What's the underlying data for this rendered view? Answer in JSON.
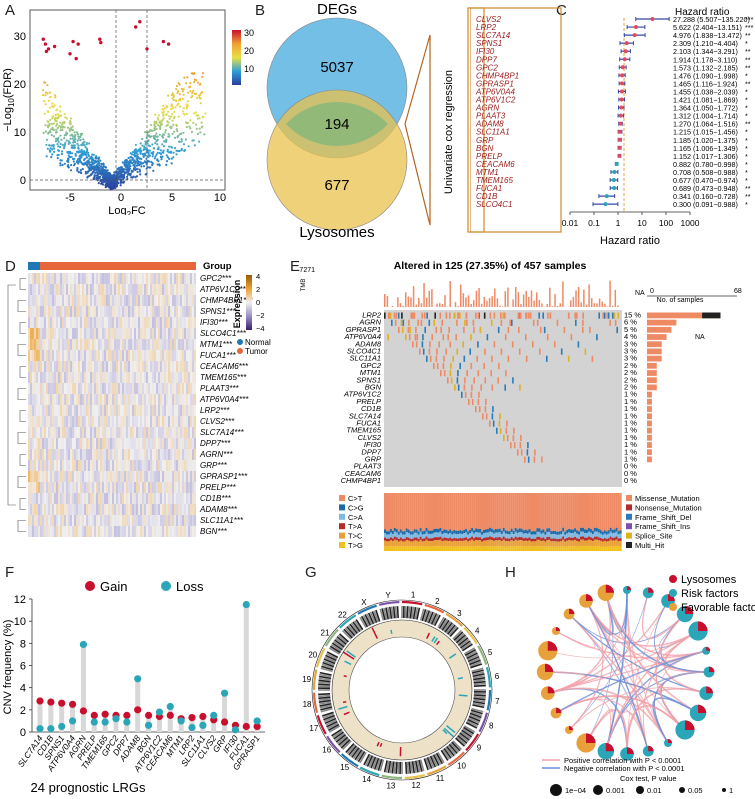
{
  "panels": {
    "A": {
      "label": "A",
      "xlabel_main": "Log",
      "xlabel_sub": "2",
      "xlabel_tail": "FC",
      "ylabel_main": "−Log",
      "ylabel_sub": "10",
      "ylabel_tail": "(FDR)",
      "x_ticks": [
        "-5",
        "0",
        "5",
        "10"
      ],
      "y_ticks": [
        "0",
        "10",
        "20",
        "30"
      ],
      "colorbar_ticks": [
        "30",
        "20",
        "10"
      ]
    },
    "B": {
      "label": "B",
      "top_label": "DEGs",
      "bottom_label": "Lysosomes",
      "n_degs_only": "5037",
      "n_overlap": "194",
      "n_lyso_only": "677",
      "arrow_text": "Univariate cox regression"
    },
    "C": {
      "label": "C",
      "header": "Hazard ratio",
      "xlabel": "Hazard ratio",
      "x_ticks": [
        "0.01",
        "0.1",
        "1",
        "10",
        "100",
        "1000"
      ]
    },
    "D": {
      "label": "D",
      "group_title": "Group",
      "legend_title": "Expression",
      "legend_ticks": [
        "4",
        "2",
        "0",
        "−2",
        "−4"
      ],
      "legend_groups": [
        "Normal",
        "Tumor"
      ],
      "genes": [
        "GPC2***",
        "ATP6V1C2***",
        "CHMP4BP1***",
        "SPNS1***",
        "IFI30***",
        "SLCO4C1***",
        "MTM1***",
        "FUCA1***",
        "CEACAM6***",
        "TMEM165***",
        "PLAAT3***",
        "ATP6V0A4***",
        "LRP2***",
        "CLVS2***",
        "SLC7A14***",
        "DPP7***",
        "AGRN***",
        "GRP***",
        "GPRASP1***",
        "PRELP***",
        "CD1B***",
        "ADAM8***",
        "SLC11A1***",
        "BGN***"
      ]
    },
    "E": {
      "label": "E",
      "title": "Altered in 125 (27.35%) of 457 samples",
      "tmb_label": "TMB",
      "tmb_max": "7271",
      "na_label": "NA",
      "samples_label": "No. of samples",
      "samples_ticks": [
        "0",
        "68"
      ],
      "genes": [
        "LRP2",
        "AGRN",
        "GPRASP1",
        "ATP6V0A4",
        "ADAM8",
        "SLCO4C1",
        "SLC11A1",
        "GPC2",
        "MTM1",
        "SPNS1",
        "BGN",
        "ATP6V1C2",
        "PRELP",
        "CD1B",
        "SLC7A14",
        "FUCA1",
        "TMEM165",
        "CLVS2",
        "IFI30",
        "DPP7",
        "GRP",
        "PLAAT3",
        "CEACAM6",
        "CHMP4BP1"
      ],
      "pcts": [
        "15 %",
        "6 %",
        "5 %",
        "4 %",
        "3 %",
        "3 %",
        "3 %",
        "2 %",
        "2 %",
        "2 %",
        "2 %",
        "1 %",
        "1 %",
        "1 %",
        "1 %",
        "1 %",
        "1 %",
        "1 %",
        "1 %",
        "1 %",
        "1 %",
        "0 %",
        "0 %",
        "0 %"
      ],
      "titv_labels": [
        "C>T",
        "C>G",
        "C>A",
        "T>A",
        "T>C",
        "T>G"
      ],
      "variant_labels": [
        "Missense_Mutation",
        "Nonsense_Mutation",
        "Frame_Shift_Del",
        "Frame_Shift_Ins",
        "Splice_Site",
        "Multi_Hit"
      ]
    },
    "F": {
      "label": "F",
      "legend_gain": "Gain",
      "legend_loss": "Loss",
      "ylabel": "CNV frequency (%)",
      "y_ticks": [
        "0",
        "2",
        "4",
        "6",
        "8",
        "10",
        "12"
      ],
      "footer": "24 prognostic LRGs"
    },
    "G": {
      "label": "G",
      "chromosomes": [
        "1",
        "2",
        "3",
        "4",
        "5",
        "6",
        "7",
        "8",
        "9",
        "10",
        "11",
        "12",
        "13",
        "14",
        "15",
        "16",
        "17",
        "18",
        "19",
        "20",
        "21",
        "22",
        "X",
        "Y"
      ]
    },
    "H": {
      "label": "H",
      "legend": [
        "Lysosomes",
        "Risk factors",
        "Favorable factors"
      ],
      "pos_corr": "Positive correlation with P < 0.0001",
      "neg_corr": "Negative correlation with P < 0.0001",
      "pvalue_title": "Cox test, P value",
      "pvalue_labels": [
        "1e−04",
        "0.001",
        "0.01",
        "0.05",
        "1"
      ]
    }
  },
  "colors": {
    "red": "#c8102e",
    "teal": "#2aa6b8",
    "orange": "#e8a13a",
    "pink": "#f2a0a8",
    "blue_line": "#6a8fd8",
    "venn_blue": "#5ab4e0",
    "venn_yellow": "#e9c24c"
  },
  "chart_data": [
    {
      "type": "scatter",
      "panel": "A",
      "xlabel": "Log2FC",
      "ylabel": "-Log10(FDR)",
      "xlim": [
        -8,
        11
      ],
      "ylim": [
        0,
        37
      ],
      "thresholds": {
        "x": [
          -1,
          1
        ],
        "y": 1.3
      },
      "highlight_points": [
        [
          -6.7,
          31
        ],
        [
          -6.5,
          30
        ],
        [
          -6.4,
          28.5
        ],
        [
          -6.2,
          29
        ],
        [
          -5.6,
          29.5
        ],
        [
          -4.1,
          28
        ],
        [
          -3.8,
          30.5
        ],
        [
          -3.3,
          30
        ],
        [
          -3.5,
          27
        ],
        [
          -1.2,
          31
        ],
        [
          -1.1,
          30.3
        ],
        [
          2.3,
          33.5
        ],
        [
          2.7,
          34.6
        ],
        [
          3.4,
          29
        ],
        [
          5.0,
          30.5
        ],
        [
          5.5,
          30
        ]
      ]
    },
    {
      "type": "table",
      "panel": "C",
      "title": "Hazard ratio",
      "genes": [
        "CLVS2",
        "LRP2",
        "SLC7A14",
        "SPNS1",
        "IFI30",
        "DPP7",
        "GPC2",
        "CHMP4BP1",
        "GPRASP1",
        "ATP6V0A4",
        "ATP6V1C2",
        "AGRN",
        "PLAAT3",
        "ADAM8",
        "SLC11A1",
        "GRP",
        "BGN",
        "PRELP",
        "CEACAM6",
        "MTM1",
        "TMEM165",
        "FUCA1",
        "CD1B",
        "SLCO4C1"
      ],
      "hr": [
        27.288,
        5.622,
        4.976,
        2.309,
        2.103,
        1.914,
        1.573,
        1.476,
        1.465,
        1.455,
        1.421,
        1.364,
        1.312,
        1.27,
        1.215,
        1.185,
        1.165,
        1.152,
        0.882,
        0.708,
        0.677,
        0.689,
        0.341,
        0.3
      ],
      "lower": [
        5.507,
        2.404,
        1.838,
        1.21,
        1.344,
        1.178,
        1.132,
        1.09,
        1.116,
        1.038,
        1.081,
        1.05,
        1.004,
        1.064,
        1.015,
        1.02,
        1.006,
        1.017,
        0.78,
        0.508,
        0.47,
        0.473,
        0.16,
        0.091
      ],
      "upper": [
        135.22,
        13.151,
        13.472,
        4.404,
        3.291,
        3.11,
        2.185,
        1.998,
        1.924,
        2.039,
        1.869,
        1.772,
        1.714,
        1.516,
        1.456,
        1.375,
        1.349,
        1.306,
        0.998,
        0.988,
        0.974,
        0.948,
        0.728,
        0.988
      ],
      "ci_text": [
        "27.288 (5.507−135.220)",
        "5.622 (2.404−13.151)",
        "4.976 (1.838−13.472)",
        "2.309 (1.210−4.404)",
        "2.103 (1.344−3.291)",
        "1.914 (1.178−3.110)",
        "1.573 (1.132−2.185)",
        "1.476 (1.090−1.998)",
        "1.465 (1.116−1.924)",
        "1.455 (1.038−2.039)",
        "1.421 (1.081−1.869)",
        "1.364 (1.050−1.772)",
        "1.312 (1.004−1.714)",
        "1.270 (1.064−1.516)",
        "1.215 (1.015−1.456)",
        "1.185 (1.020−1.375)",
        "1.165 (1.006−1.349)",
        "1.152 (1.017−1.306)",
        "0.882 (0.780−0.998)",
        "0.708 (0.508−0.988)",
        "0.677 (0.470−0.974)",
        "0.689 (0.473−0.948)",
        "0.341 (0.160−0.728)",
        "0.300 (0.091−0.988)"
      ],
      "sig": [
        "***",
        "***",
        "**",
        "*",
        "**",
        "**",
        "**",
        "*",
        "**",
        "*",
        "*",
        "*",
        "*",
        "**",
        "*",
        "*",
        "*",
        "*",
        "*",
        "*",
        "*",
        "**",
        "**",
        "*"
      ]
    },
    {
      "type": "bar",
      "panel": "F",
      "ylabel": "CNV frequency (%)",
      "ylim": [
        0,
        12
      ],
      "categories": [
        "SLC7A14",
        "CD1B",
        "SPNS1",
        "ATP6V0A4",
        "AGRN",
        "PRELP",
        "TMEM165",
        "GPC2",
        "DPP7",
        "ADAM8",
        "BGN",
        "ATP6V1C2",
        "CEACAM6",
        "MTM1",
        "LRP2",
        "SLC11A1",
        "CLVS2",
        "GRP",
        "IFI30",
        "FUCA1",
        "GPRASP1"
      ],
      "series": [
        {
          "name": "Gain",
          "values": [
            2.8,
            2.7,
            2.6,
            2.5,
            1.9,
            1.5,
            1.6,
            1.5,
            1.5,
            2.0,
            1.5,
            1.4,
            1.5,
            1.2,
            1.3,
            1.4,
            1.1,
            0.9,
            0.6,
            0.5,
            0.5
          ]
        },
        {
          "name": "Loss",
          "values": [
            0.3,
            0.3,
            0.5,
            1.0,
            7.9,
            0.9,
            0.9,
            1.2,
            0.9,
            4.8,
            0.6,
            1.8,
            2.3,
            1.0,
            0.4,
            0.6,
            1.5,
            3.5,
            0.2,
            11.5,
            1.0
          ]
        }
      ]
    }
  ]
}
